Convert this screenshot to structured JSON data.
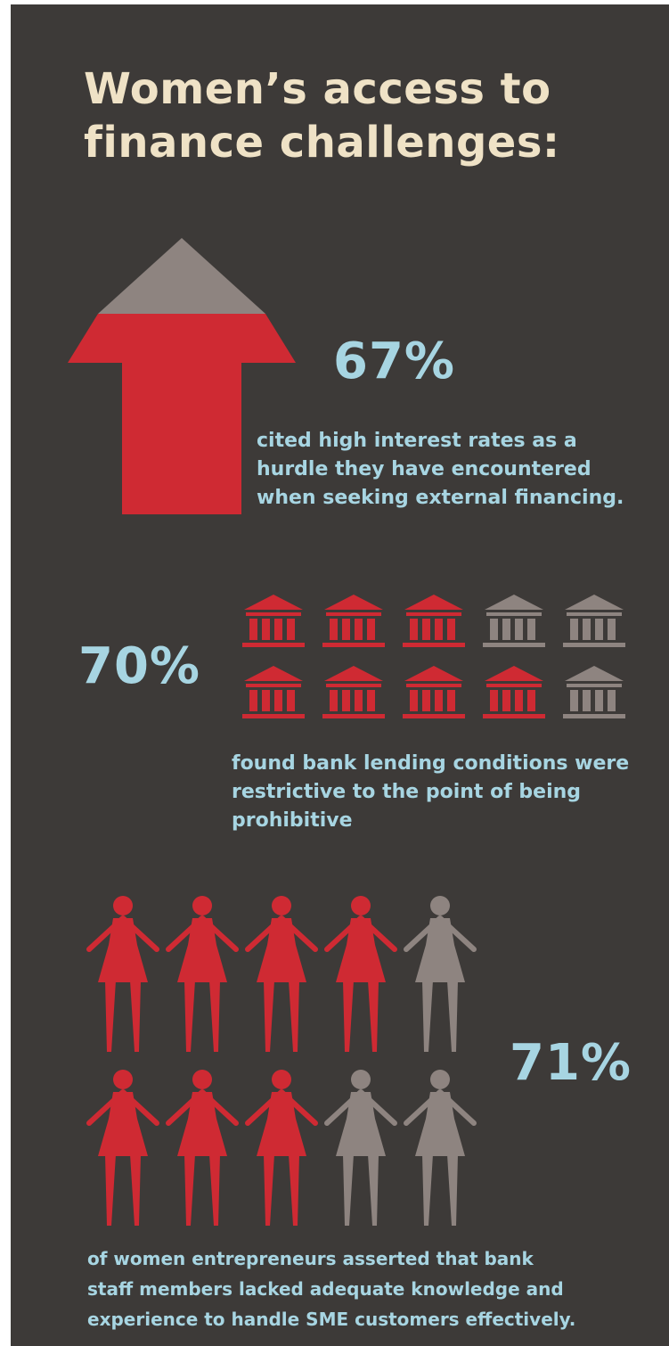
{
  "page": {
    "title_lines": [
      "Women’s access to",
      "finance challenges:"
    ]
  },
  "colors": {
    "background": "#3d3a38",
    "title": "#efe2c6",
    "accent_text": "#a7d5e2",
    "red": "#cf2a33",
    "grey": "#8e8480"
  },
  "sections": {
    "interest": {
      "stat": "67%",
      "lines": [
        "cited high interest rates as a",
        "hurdle they have encountered",
        "when seeking external financing."
      ],
      "arrow_red_fraction": 0.67
    },
    "bank": {
      "stat": "70%",
      "lines": [
        "found bank lending conditions were",
        "restrictive to the point of being",
        "prohibitive"
      ],
      "icon": "bank-icon",
      "icons_total": 10,
      "icons_highlighted": 7,
      "highlight_pattern": [
        [
          1,
          1,
          1,
          0,
          0
        ],
        [
          1,
          1,
          1,
          1,
          0
        ]
      ]
    },
    "staff": {
      "stat": "71%",
      "lines": [
        "of women entrepreneurs asserted that bank",
        "staff members lacked adequate knowledge and",
        "experience to handle SME customers effectively."
      ],
      "icon": "woman-figure-icon",
      "icons_total": 10,
      "icons_highlighted": 7,
      "highlight_pattern": [
        [
          1,
          1,
          1,
          1,
          0
        ],
        [
          1,
          1,
          1,
          0,
          0
        ]
      ]
    }
  }
}
